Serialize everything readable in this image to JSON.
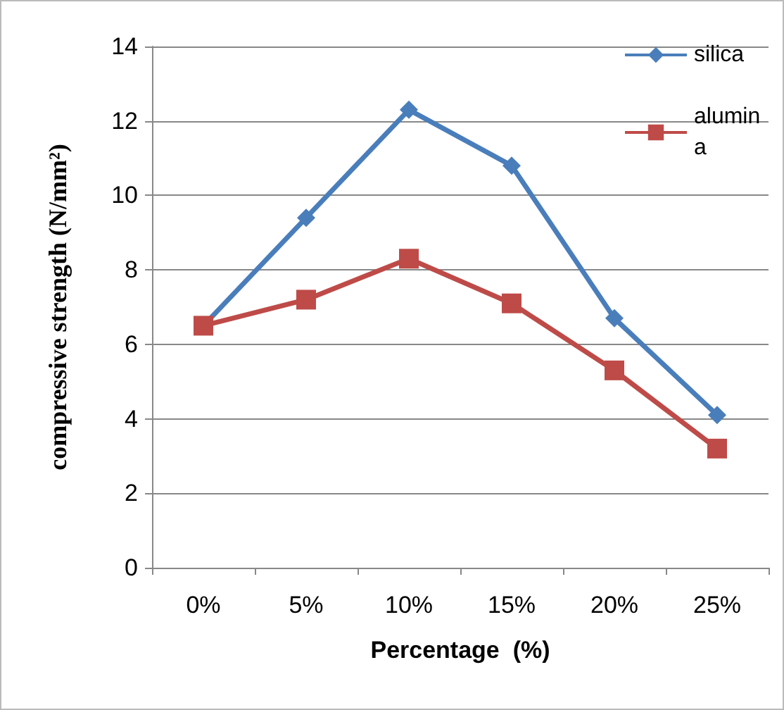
{
  "chart_data": {
    "type": "line",
    "xlabel": "Percentage  (%)",
    "ylabel": "compressive strength (N/mm²)",
    "categories": [
      "0%",
      "5%",
      "10%",
      "15%",
      "20%",
      "25%"
    ],
    "series": [
      {
        "name": "silica",
        "color": "#4a7ebb",
        "marker": "diamond",
        "values": [
          6.5,
          9.4,
          12.3,
          10.8,
          6.7,
          4.1
        ]
      },
      {
        "name": "alumina",
        "color": "#be4b48",
        "marker": "square",
        "values": [
          6.5,
          7.2,
          8.3,
          7.1,
          5.3,
          3.2
        ]
      }
    ],
    "ylim": [
      0,
      14
    ],
    "yticks": [
      0,
      2,
      4,
      6,
      8,
      10,
      12,
      14
    ],
    "grid": "y",
    "legend": "top right"
  }
}
